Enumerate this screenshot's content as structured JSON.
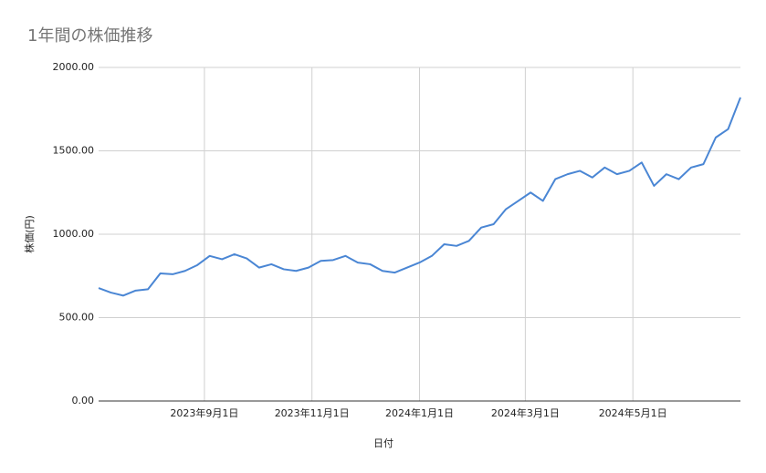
{
  "chart_data": {
    "type": "line",
    "title": "1年間の株価推移",
    "x_label": "日付",
    "y_label": "株価(円)",
    "x": [
      "2023-07-03",
      "2023-07-10",
      "2023-07-17",
      "2023-07-24",
      "2023-07-31",
      "2023-08-07",
      "2023-08-14",
      "2023-08-21",
      "2023-08-28",
      "2023-09-04",
      "2023-09-11",
      "2023-09-18",
      "2023-09-25",
      "2023-10-02",
      "2023-10-09",
      "2023-10-16",
      "2023-10-23",
      "2023-10-30",
      "2023-11-06",
      "2023-11-13",
      "2023-11-20",
      "2023-11-27",
      "2023-12-04",
      "2023-12-11",
      "2023-12-18",
      "2023-12-25",
      "2024-01-01",
      "2024-01-08",
      "2024-01-15",
      "2024-01-22",
      "2024-01-29",
      "2024-02-05",
      "2024-02-12",
      "2024-02-19",
      "2024-02-26",
      "2024-03-04",
      "2024-03-11",
      "2024-03-18",
      "2024-03-25",
      "2024-04-01",
      "2024-04-08",
      "2024-04-15",
      "2024-04-22",
      "2024-04-29",
      "2024-05-06",
      "2024-05-13",
      "2024-05-20",
      "2024-05-27",
      "2024-06-03",
      "2024-06-10",
      "2024-06-17",
      "2024-06-24",
      "2024-07-01"
    ],
    "series": [
      {
        "name": "株価",
        "color": "#4a86d4",
        "values": [
          677,
          650,
          632,
          662,
          670,
          765,
          760,
          780,
          815,
          870,
          850,
          880,
          855,
          800,
          820,
          790,
          780,
          800,
          840,
          845,
          870,
          830,
          820,
          780,
          770,
          800,
          830,
          870,
          940,
          930,
          960,
          1040,
          1060,
          1150,
          1200,
          1250,
          1200,
          1330,
          1360,
          1380,
          1340,
          1400,
          1360,
          1380,
          1430,
          1290,
          1360,
          1330,
          1400,
          1420,
          1580,
          1630,
          1820
        ]
      }
    ],
    "xlim": [
      "2023-07-03",
      "2024-07-01"
    ],
    "xticks": [
      {
        "value": "2023-09-01",
        "label": "2023年9月1日"
      },
      {
        "value": "2023-11-01",
        "label": "2023年11月1日"
      },
      {
        "value": "2024-01-01",
        "label": "2024年1月1日"
      },
      {
        "value": "2024-03-01",
        "label": "2024年3月1日"
      },
      {
        "value": "2024-05-01",
        "label": "2024年5月1日"
      }
    ],
    "ylim": [
      0,
      2000
    ],
    "yticks": [
      {
        "value": 0,
        "label": "0.00"
      },
      {
        "value": 500,
        "label": "500.00"
      },
      {
        "value": 1000,
        "label": "1000.00"
      },
      {
        "value": 1500,
        "label": "1500.00"
      },
      {
        "value": 2000,
        "label": "2000.00"
      }
    ],
    "grid": true
  }
}
